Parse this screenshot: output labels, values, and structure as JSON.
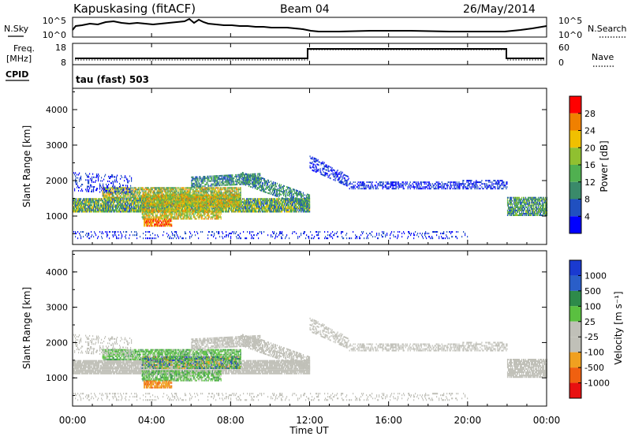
{
  "header": {
    "station": "Kapuskasing (fitACF)",
    "beam": "Beam 04",
    "date": "26/May/2014"
  },
  "sky_panel": {
    "left_label": "N.Sky",
    "left_ticks": [
      "10^5",
      "10^0"
    ],
    "right_ticks": [
      "10^5",
      "10^0"
    ],
    "right_label": "N.Search"
  },
  "freq_panel": {
    "left_label_1": "Freq.",
    "left_label_2": "[MHz]",
    "left_ticks": [
      "18",
      "8"
    ],
    "right_ticks": [
      "60",
      "0"
    ],
    "right_label": "Nave"
  },
  "cpid": {
    "label": "CPID",
    "value": "tau (fast) 503"
  },
  "chart_data": [
    {
      "type": "heatmap",
      "name": "power",
      "ylabel": "Slant Range [km]",
      "yticks": [
        "4000",
        "3000",
        "2000",
        "1000"
      ],
      "ylim": [
        200,
        4600
      ],
      "colorbar": {
        "label": "Power [dB]",
        "ticks": [
          "28",
          "24",
          "20",
          "16",
          "12",
          "8",
          "4"
        ],
        "range": [
          0,
          32
        ],
        "colors": [
          "#0000ff",
          "#2050c0",
          "#3a8a6a",
          "#50b050",
          "#90c030",
          "#f0c000",
          "#f08000",
          "#ff0000"
        ]
      }
    },
    {
      "type": "heatmap",
      "name": "velocity",
      "ylabel": "Slant Range [km]",
      "yticks": [
        "4000",
        "3000",
        "2000",
        "1000"
      ],
      "ylim": [
        200,
        4600
      ],
      "xlabel": "Time UT",
      "xticks": [
        "00:00",
        "04:00",
        "08:00",
        "12:00",
        "16:00",
        "20:00",
        "00:00"
      ],
      "xlim": [
        0,
        24
      ],
      "colorbar": {
        "label": "Velocity [m s⁻¹]",
        "ticks": [
          "1000",
          "500",
          "100",
          "25",
          "-25",
          "-100",
          "-500",
          "-1000"
        ],
        "colors": [
          "#1a3ad0",
          "#3070c0",
          "#2e8a4a",
          "#5ac040",
          "#c0c0b8",
          "#f0a020",
          "#f06010",
          "#e81010"
        ]
      }
    }
  ]
}
